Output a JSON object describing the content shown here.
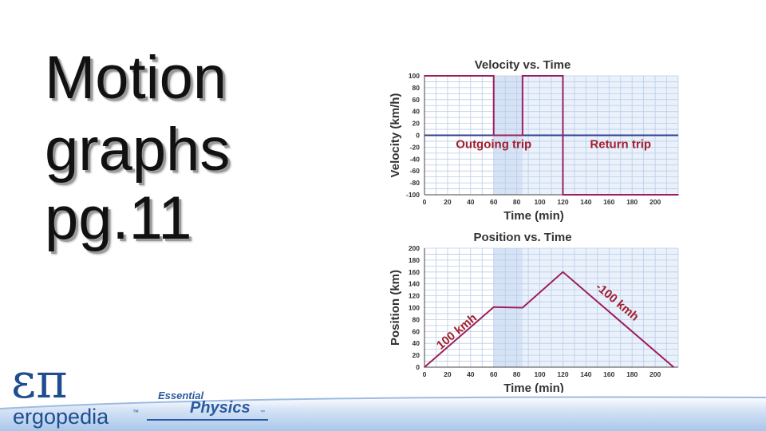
{
  "slide": {
    "title_lines": [
      "Motion",
      "graphs",
      "pg.11"
    ]
  },
  "logo": {
    "symbol": "επ",
    "wordmark": "ergopedia",
    "trademark": "™",
    "series_top": "Essential",
    "series_main": "Physics",
    "series_trademark": "™"
  },
  "colors": {
    "plot_line": "#9c1e5e",
    "zero_line": "#2e3f8f",
    "shade_dark": "#d6e3f5",
    "shade_light": "#eaf1fb",
    "grid": "#b9cde8",
    "annotation": "#a11f2f",
    "footer_band": "#8fb3e0"
  },
  "chart_data": [
    {
      "type": "line",
      "title": "Velocity vs. Time",
      "xlabel": "Time (min)",
      "ylabel": "Velocity (km/h)",
      "xlim": [
        0,
        220
      ],
      "ylim": [
        -100,
        100
      ],
      "x_ticks": [
        "0",
        "20",
        "40",
        "60",
        "80",
        "100",
        "120",
        "140",
        "160",
        "180",
        "200"
      ],
      "y_ticks": [
        "100",
        "80",
        "60",
        "40",
        "20",
        "0",
        "-20",
        "-40",
        "-60",
        "-80",
        "-100"
      ],
      "series": [
        {
          "x": [
            0,
            60,
            60,
            85,
            85,
            120,
            120,
            220
          ],
          "y": [
            100,
            100,
            0,
            0,
            100,
            100,
            -100,
            -100
          ]
        }
      ],
      "shaded_intervals": [
        [
          60,
          85
        ]
      ],
      "annotations": [
        {
          "text": "Outgoing trip",
          "x": 60,
          "y": -15
        },
        {
          "text": "Return trip",
          "x": 170,
          "y": -15
        }
      ],
      "grid": true
    },
    {
      "type": "line",
      "title": "Position vs. Time",
      "xlabel": "Time (min)",
      "ylabel": "Position (km)",
      "xlim": [
        0,
        220
      ],
      "ylim": [
        0,
        200
      ],
      "x_ticks": [
        "0",
        "20",
        "40",
        "60",
        "80",
        "100",
        "120",
        "140",
        "160",
        "180",
        "200"
      ],
      "y_ticks": [
        "200",
        "180",
        "160",
        "140",
        "120",
        "100",
        "80",
        "60",
        "40",
        "20",
        "0"
      ],
      "series": [
        {
          "x": [
            0,
            60,
            85,
            120,
            216
          ],
          "y": [
            0,
            101,
            100,
            160,
            0
          ]
        }
      ],
      "shaded_intervals": [
        [
          60,
          85
        ]
      ],
      "annotations": [
        {
          "text": "100 kmh",
          "x": 30,
          "y": 55
        },
        {
          "text": "-100 kmh",
          "x": 165,
          "y": 105
        }
      ],
      "grid": true
    }
  ]
}
